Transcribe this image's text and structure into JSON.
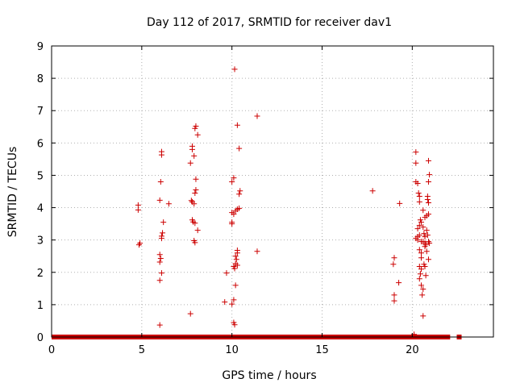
{
  "chart_data": {
    "type": "scatter",
    "title": "Day 112 of 2017, SRMTID for receiver dav1",
    "xlabel": "GPS time / hours",
    "ylabel": "SRMTID / TECUs",
    "xlim": [
      0,
      24.5
    ],
    "ylim": [
      0,
      9
    ],
    "xticks": [
      0,
      5,
      10,
      15,
      20
    ],
    "yticks": [
      0,
      1,
      2,
      3,
      4,
      5,
      6,
      7,
      8,
      9
    ],
    "grid": true,
    "marker": "+",
    "color": "#cc0000",
    "baseline_zero_band": {
      "x_from": 0,
      "x_to": 22.1,
      "extra_x": [
        22.6
      ],
      "value": 0
    },
    "series": [
      {
        "name": "SRMTID",
        "points": [
          [
            4.8,
            4.08
          ],
          [
            4.8,
            3.93
          ],
          [
            4.9,
            2.9
          ],
          [
            4.85,
            2.85
          ],
          [
            6.1,
            5.73
          ],
          [
            6.1,
            5.63
          ],
          [
            6.05,
            4.8
          ],
          [
            6.0,
            4.23
          ],
          [
            6.2,
            3.55
          ],
          [
            6.15,
            3.22
          ],
          [
            6.1,
            3.12
          ],
          [
            6.1,
            3.05
          ],
          [
            6.0,
            2.55
          ],
          [
            6.05,
            2.43
          ],
          [
            6.0,
            2.32
          ],
          [
            6.1,
            1.98
          ],
          [
            6.0,
            1.75
          ],
          [
            6.0,
            0.37
          ],
          [
            6.5,
            4.12
          ],
          [
            8.0,
            6.52
          ],
          [
            7.95,
            6.45
          ],
          [
            8.1,
            6.25
          ],
          [
            7.8,
            5.9
          ],
          [
            7.8,
            5.8
          ],
          [
            7.9,
            5.6
          ],
          [
            7.7,
            5.38
          ],
          [
            8.0,
            4.88
          ],
          [
            8.0,
            4.55
          ],
          [
            7.95,
            4.45
          ],
          [
            7.75,
            4.22
          ],
          [
            7.8,
            4.18
          ],
          [
            7.9,
            4.12
          ],
          [
            7.8,
            3.62
          ],
          [
            7.85,
            3.56
          ],
          [
            7.95,
            3.52
          ],
          [
            8.1,
            3.3
          ],
          [
            7.9,
            2.98
          ],
          [
            7.95,
            2.92
          ],
          [
            7.7,
            0.72
          ],
          [
            10.15,
            8.28
          ],
          [
            10.3,
            6.55
          ],
          [
            10.4,
            5.83
          ],
          [
            10.1,
            4.92
          ],
          [
            10.0,
            4.8
          ],
          [
            10.45,
            4.52
          ],
          [
            10.4,
            4.42
          ],
          [
            10.4,
            3.98
          ],
          [
            10.3,
            3.95
          ],
          [
            10.2,
            3.9
          ],
          [
            10.0,
            3.85
          ],
          [
            10.1,
            3.8
          ],
          [
            10.0,
            3.55
          ],
          [
            10.0,
            3.5
          ],
          [
            10.3,
            2.68
          ],
          [
            10.3,
            2.6
          ],
          [
            10.2,
            2.5
          ],
          [
            10.25,
            2.4
          ],
          [
            10.2,
            2.27
          ],
          [
            10.3,
            2.22
          ],
          [
            10.1,
            2.18
          ],
          [
            10.15,
            2.12
          ],
          [
            10.2,
            1.6
          ],
          [
            9.7,
            1.98
          ],
          [
            10.1,
            1.15
          ],
          [
            10.0,
            1.02
          ],
          [
            9.6,
            1.08
          ],
          [
            10.1,
            0.45
          ],
          [
            10.15,
            0.38
          ],
          [
            11.4,
            6.83
          ],
          [
            11.4,
            2.65
          ],
          [
            17.8,
            4.52
          ],
          [
            19.3,
            4.13
          ],
          [
            19.0,
            2.45
          ],
          [
            18.95,
            2.25
          ],
          [
            19.25,
            1.68
          ],
          [
            19.0,
            1.3
          ],
          [
            19.0,
            1.12
          ],
          [
            20.2,
            5.72
          ],
          [
            20.2,
            5.38
          ],
          [
            20.2,
            4.8
          ],
          [
            20.3,
            4.75
          ],
          [
            20.35,
            4.45
          ],
          [
            20.4,
            4.35
          ],
          [
            20.4,
            4.18
          ],
          [
            20.45,
            3.62
          ],
          [
            20.5,
            3.55
          ],
          [
            20.4,
            3.45
          ],
          [
            20.3,
            3.35
          ],
          [
            20.4,
            3.15
          ],
          [
            20.3,
            3.1
          ],
          [
            20.2,
            3.05
          ],
          [
            20.3,
            3.0
          ],
          [
            20.5,
            2.95
          ],
          [
            20.4,
            2.7
          ],
          [
            20.5,
            2.6
          ],
          [
            20.5,
            2.45
          ],
          [
            20.4,
            2.18
          ],
          [
            20.5,
            2.1
          ],
          [
            20.45,
            1.95
          ],
          [
            20.4,
            1.8
          ],
          [
            20.5,
            1.6
          ],
          [
            20.6,
            1.48
          ],
          [
            20.55,
            1.3
          ],
          [
            20.6,
            0.65
          ],
          [
            20.6,
            3.92
          ],
          [
            20.7,
            3.7
          ],
          [
            20.6,
            3.4
          ],
          [
            20.65,
            3.2
          ],
          [
            20.7,
            3.1
          ],
          [
            20.6,
            2.95
          ],
          [
            20.7,
            2.9
          ],
          [
            20.75,
            2.85
          ],
          [
            20.7,
            2.8
          ],
          [
            20.8,
            2.65
          ],
          [
            20.65,
            2.25
          ],
          [
            20.7,
            2.18
          ],
          [
            20.75,
            1.9
          ],
          [
            20.9,
            5.45
          ],
          [
            20.95,
            5.02
          ],
          [
            20.9,
            4.8
          ],
          [
            20.85,
            4.35
          ],
          [
            20.85,
            4.25
          ],
          [
            20.9,
            4.15
          ],
          [
            20.9,
            3.8
          ],
          [
            20.8,
            3.75
          ],
          [
            20.8,
            3.3
          ],
          [
            20.85,
            3.15
          ],
          [
            20.9,
            2.95
          ],
          [
            20.95,
            2.9
          ],
          [
            20.9,
            2.4
          ],
          [
            20.1,
            0.08
          ]
        ]
      }
    ]
  }
}
